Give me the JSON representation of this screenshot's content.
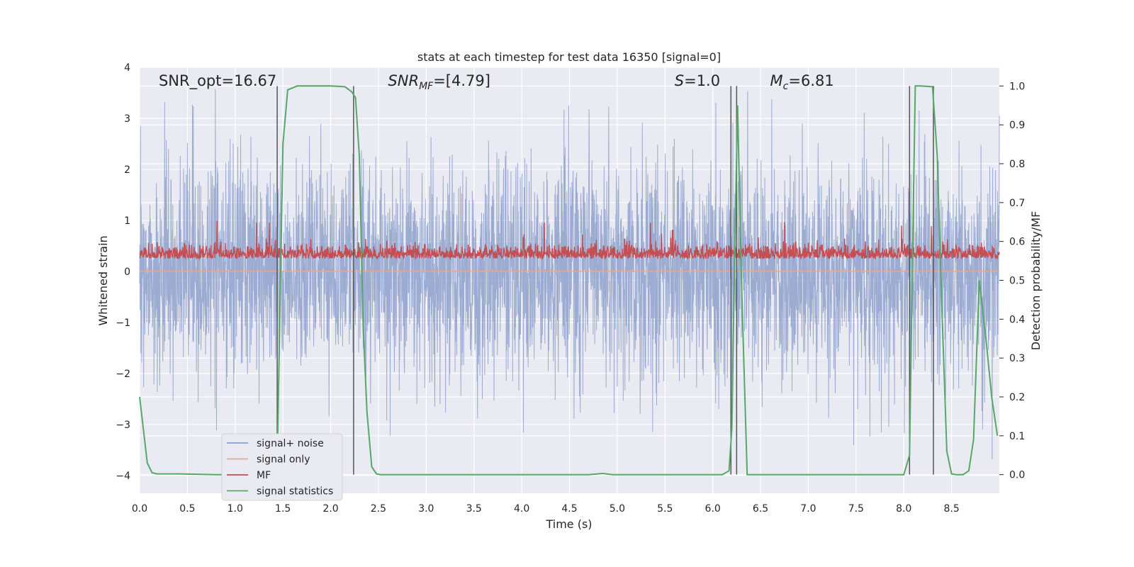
{
  "chart_data": {
    "type": "line",
    "title": "stats at each timestep for test data 16350 [signal=0]",
    "xlabel": "Time (s)",
    "ylabel": "Whitened strain",
    "y2label": "Detection probability/MF",
    "xlim": [
      0.0,
      9.0
    ],
    "ylim": [
      -4.35,
      4.0
    ],
    "y2lim": [
      -0.048,
      1.048
    ],
    "grid": true,
    "legend_position": "lower-left",
    "x_ticks": [
      0.0,
      0.5,
      1.0,
      1.5,
      2.0,
      2.5,
      3.0,
      3.5,
      4.0,
      4.5,
      5.0,
      5.5,
      6.0,
      6.5,
      7.0,
      7.5,
      8.0,
      8.5
    ],
    "x_tick_labels": [
      "0.0",
      "0.5",
      "1.0",
      "1.5",
      "2.0",
      "2.5",
      "3.0",
      "3.5",
      "4.0",
      "4.5",
      "5.0",
      "5.5",
      "6.0",
      "6.5",
      "7.0",
      "7.5",
      "8.0",
      "8.5"
    ],
    "y_ticks": [
      4,
      3,
      2,
      1,
      0,
      -1,
      -2,
      -3,
      -4
    ],
    "y_tick_labels": [
      "4",
      "3",
      "2",
      "1",
      "0",
      "−1",
      "−2",
      "−3",
      "−4"
    ],
    "y2_ticks": [
      0.0,
      0.1,
      0.2,
      0.3,
      0.4,
      0.5,
      0.6,
      0.7,
      0.8,
      0.9,
      1.0
    ],
    "y2_tick_labels": [
      "0.0",
      "0.1",
      "0.2",
      "0.3",
      "0.4",
      "0.5",
      "0.6",
      "0.7",
      "0.8",
      "0.9",
      "1.0"
    ],
    "annotations": [
      {
        "text": "SNR_opt=16.67",
        "x": 0.2
      },
      {
        "text": "SNR_MF=[4.79]",
        "x": 2.6
      },
      {
        "text": "S=1.0",
        "x": 5.6
      },
      {
        "text": "M_c=6.81",
        "x": 6.6
      }
    ],
    "series": [
      {
        "name": "signal+ noise",
        "color": "#8da0cb",
        "axis": "left",
        "style": "dense noise, mostly within ±2 with spikes to about ±3.7"
      },
      {
        "name": "signal only",
        "color": "#e8a98e",
        "axis": "left",
        "values_constant": 0.0
      },
      {
        "name": "MF",
        "color": "#c44e52",
        "axis": "left",
        "style": "dense trace between about 0.0 and 0.7 with peaks near 1.0"
      },
      {
        "name": "signal statistics",
        "color": "#55a868",
        "axis": "right",
        "x": [
          0.0,
          0.08,
          0.13,
          0.18,
          0.4,
          0.8,
          1.2,
          1.38,
          1.44,
          1.5,
          1.55,
          1.65,
          2.0,
          2.15,
          2.22,
          2.26,
          2.3,
          2.34,
          2.38,
          2.43,
          2.48,
          2.52,
          2.6,
          4.7,
          4.85,
          4.95,
          5.2,
          6.1,
          6.17,
          6.2,
          6.23,
          6.26,
          6.3,
          6.36,
          6.4,
          7.5,
          8.0,
          8.06,
          8.09,
          8.12,
          8.18,
          8.3,
          8.35,
          8.4,
          8.45,
          8.5,
          8.55,
          8.62,
          8.68,
          8.73,
          8.79,
          8.86,
          8.92,
          8.98
        ],
        "y": [
          0.2,
          0.03,
          0.005,
          0.002,
          0.002,
          0.0,
          0.0,
          0.0,
          0.03,
          0.85,
          0.99,
          1.0,
          1.0,
          0.998,
          0.985,
          0.97,
          0.82,
          0.38,
          0.16,
          0.02,
          0.002,
          0.0,
          0.0,
          0.0,
          0.003,
          0.0,
          0.0,
          0.0,
          0.01,
          0.12,
          0.58,
          0.95,
          0.5,
          0.0,
          0.0,
          0.0,
          0.0,
          0.05,
          0.55,
          1.0,
          1.0,
          0.998,
          0.82,
          0.42,
          0.06,
          0.002,
          0.0,
          0.0,
          0.01,
          0.09,
          0.5,
          0.35,
          0.2,
          0.1
        ]
      }
    ],
    "vertical_markers": [
      1.44,
      2.24,
      6.19,
      6.25,
      8.06,
      8.31
    ]
  }
}
